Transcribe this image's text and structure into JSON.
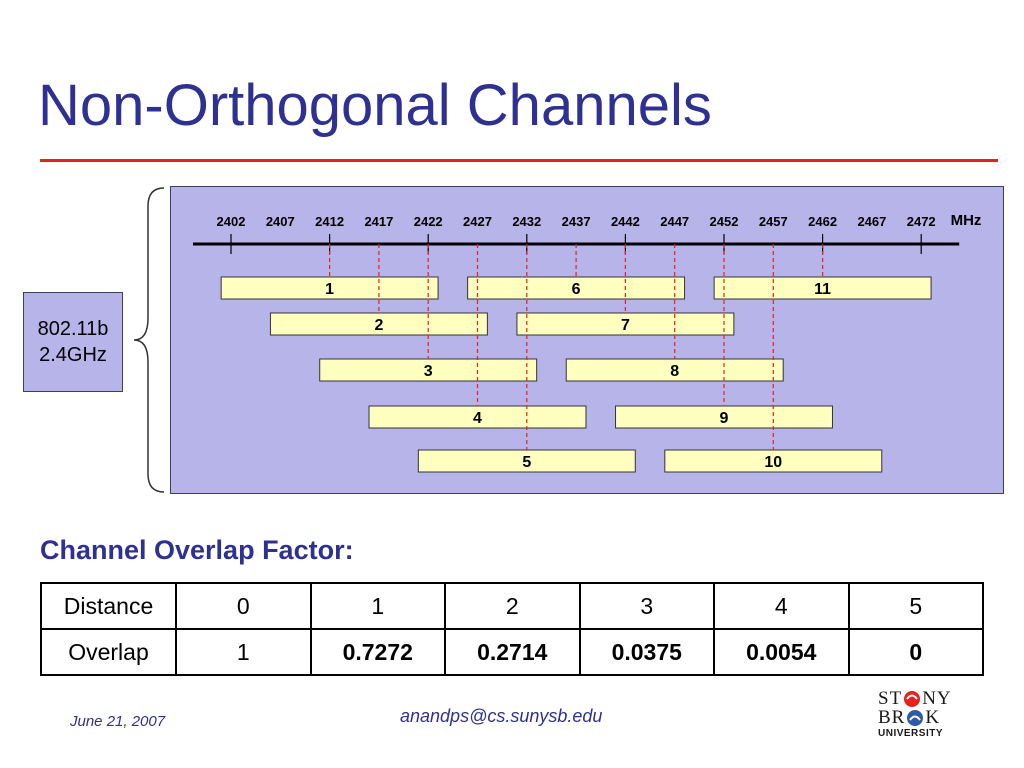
{
  "slide": {
    "title": "Non-Orthogonal Channels",
    "standard_label_line1": "802.11b",
    "standard_label_line2": "2.4GHz",
    "overlap_heading": "Channel Overlap Factor:",
    "footer_date": "June 21, 2007",
    "footer_email": "anandps@cs.sunysb.edu",
    "logo_line1": [
      "ST",
      "NY"
    ],
    "logo_line2": [
      "BR",
      "K"
    ],
    "logo_sub": "UNIVERSITY"
  },
  "chart_data": {
    "type": "diagram",
    "unit": "MHz",
    "frequencies": [
      2402,
      2407,
      2412,
      2417,
      2422,
      2427,
      2432,
      2437,
      2442,
      2447,
      2452,
      2457,
      2462,
      2467,
      2472
    ],
    "channels": [
      {
        "label": "1",
        "start": 2401,
        "end": 2423,
        "center": 2412
      },
      {
        "label": "2",
        "start": 2406,
        "end": 2428,
        "center": 2417
      },
      {
        "label": "3",
        "start": 2411,
        "end": 2433,
        "center": 2422
      },
      {
        "label": "4",
        "start": 2416,
        "end": 2438,
        "center": 2427
      },
      {
        "label": "5",
        "start": 2421,
        "end": 2443,
        "center": 2432
      },
      {
        "label": "6",
        "start": 2426,
        "end": 2448,
        "center": 2437
      },
      {
        "label": "7",
        "start": 2431,
        "end": 2453,
        "center": 2442
      },
      {
        "label": "8",
        "start": 2436,
        "end": 2458,
        "center": 2447
      },
      {
        "label": "9",
        "start": 2441,
        "end": 2463,
        "center": 2452
      },
      {
        "label": "10",
        "start": 2446,
        "end": 2468,
        "center": 2457
      },
      {
        "label": "11",
        "start": 2451,
        "end": 2473,
        "center": 2462
      }
    ],
    "colors": {
      "channel_fill": "#ffffc0",
      "center_line": "#e8201f",
      "panel": "#b7b4ea"
    }
  },
  "table": {
    "rows": [
      {
        "header": "Distance",
        "cells": [
          "0",
          "1",
          "2",
          "3",
          "4",
          "5"
        ],
        "bold": [
          false,
          false,
          false,
          false,
          false,
          false
        ]
      },
      {
        "header": "Overlap",
        "cells": [
          "1",
          "0.7272",
          "0.2714",
          "0.0375",
          "0.0054",
          "0"
        ],
        "bold": [
          false,
          true,
          true,
          true,
          true,
          true
        ]
      }
    ]
  }
}
